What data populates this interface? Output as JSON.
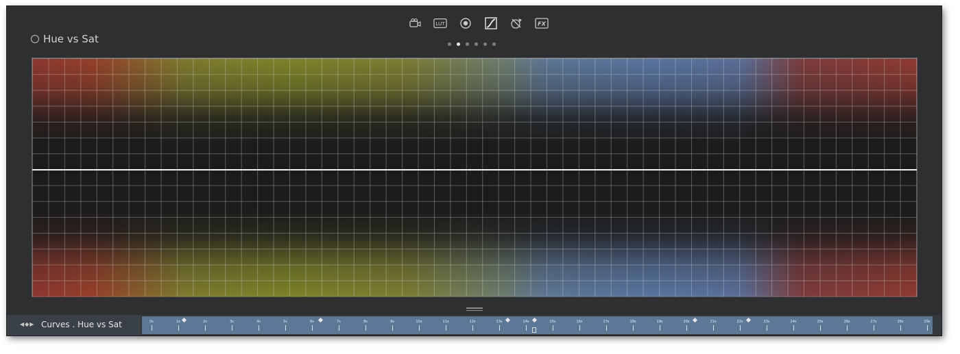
{
  "toolbar": {
    "tools": [
      {
        "name": "camera-icon",
        "label": ""
      },
      {
        "name": "lut-icon",
        "label": "LUT"
      },
      {
        "name": "color-wheel-icon",
        "label": ""
      },
      {
        "name": "curves-icon",
        "label": ""
      },
      {
        "name": "qualifier-eyedropper-icon",
        "label": ""
      },
      {
        "name": "fx-icon",
        "label": "FX"
      }
    ],
    "active_tool": "curves-icon"
  },
  "pager": {
    "pages": 6,
    "active_index": 1
  },
  "panel": {
    "title": "Hue vs Sat"
  },
  "timeline": {
    "label": "Curves . Hue vs Sat",
    "nav": "◀◆▶",
    "ticks": [
      "0s",
      "1s",
      "2s",
      "3s",
      "4s",
      "5s",
      "6s",
      "7s",
      "8s",
      "9s",
      "10s",
      "11s",
      "12s",
      "13s",
      "14s",
      "15s",
      "16s",
      "17s",
      "18s",
      "19s",
      "20s",
      "21s",
      "22s",
      "23s",
      "24s",
      "25s",
      "26s",
      "27s",
      "28s",
      "29s"
    ],
    "keyframes_at_seconds": [
      1.2,
      6.3,
      13.3,
      14.3,
      20.3,
      22.3
    ],
    "playhead_seconds": 14.3
  },
  "colors": {
    "background": "#2d2f31",
    "curve_line": "#f2f2f2",
    "ruler": "#5b7897"
  }
}
